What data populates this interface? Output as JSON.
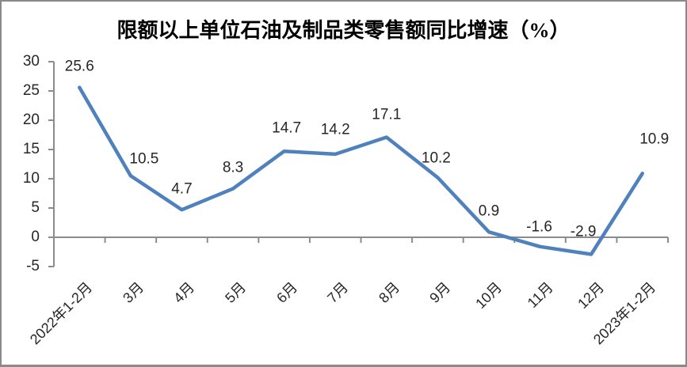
{
  "chart_data": {
    "type": "line",
    "title": "限额以上单位石油及制品类零售额同比增速（%）",
    "categories": [
      "2022年1-2月",
      "3月",
      "4月",
      "5月",
      "6月",
      "7月",
      "8月",
      "9月",
      "10月",
      "11月",
      "12月",
      "2023年1-2月"
    ],
    "values": [
      25.6,
      10.5,
      4.7,
      8.3,
      14.7,
      14.2,
      17.1,
      10.2,
      0.9,
      -1.6,
      -2.9,
      10.9
    ],
    "data_labels": [
      "25.6",
      "10.5",
      "4.7",
      "8.3",
      "14.7",
      "14.2",
      "17.1",
      "10.2",
      "0.9",
      "-1.6",
      "-2.9",
      "10.9"
    ],
    "yticks": [
      "30",
      "25",
      "20",
      "15",
      "10",
      "5",
      "0",
      "-5"
    ],
    "ytick_values": [
      30,
      25,
      20,
      15,
      10,
      5,
      0,
      -5
    ],
    "ylim": [
      -5,
      30
    ],
    "xlabel": "",
    "ylabel": "",
    "grid": "off",
    "legend": "none",
    "line_color": "#4F81BD",
    "axis_color": "#8C8C8C"
  }
}
